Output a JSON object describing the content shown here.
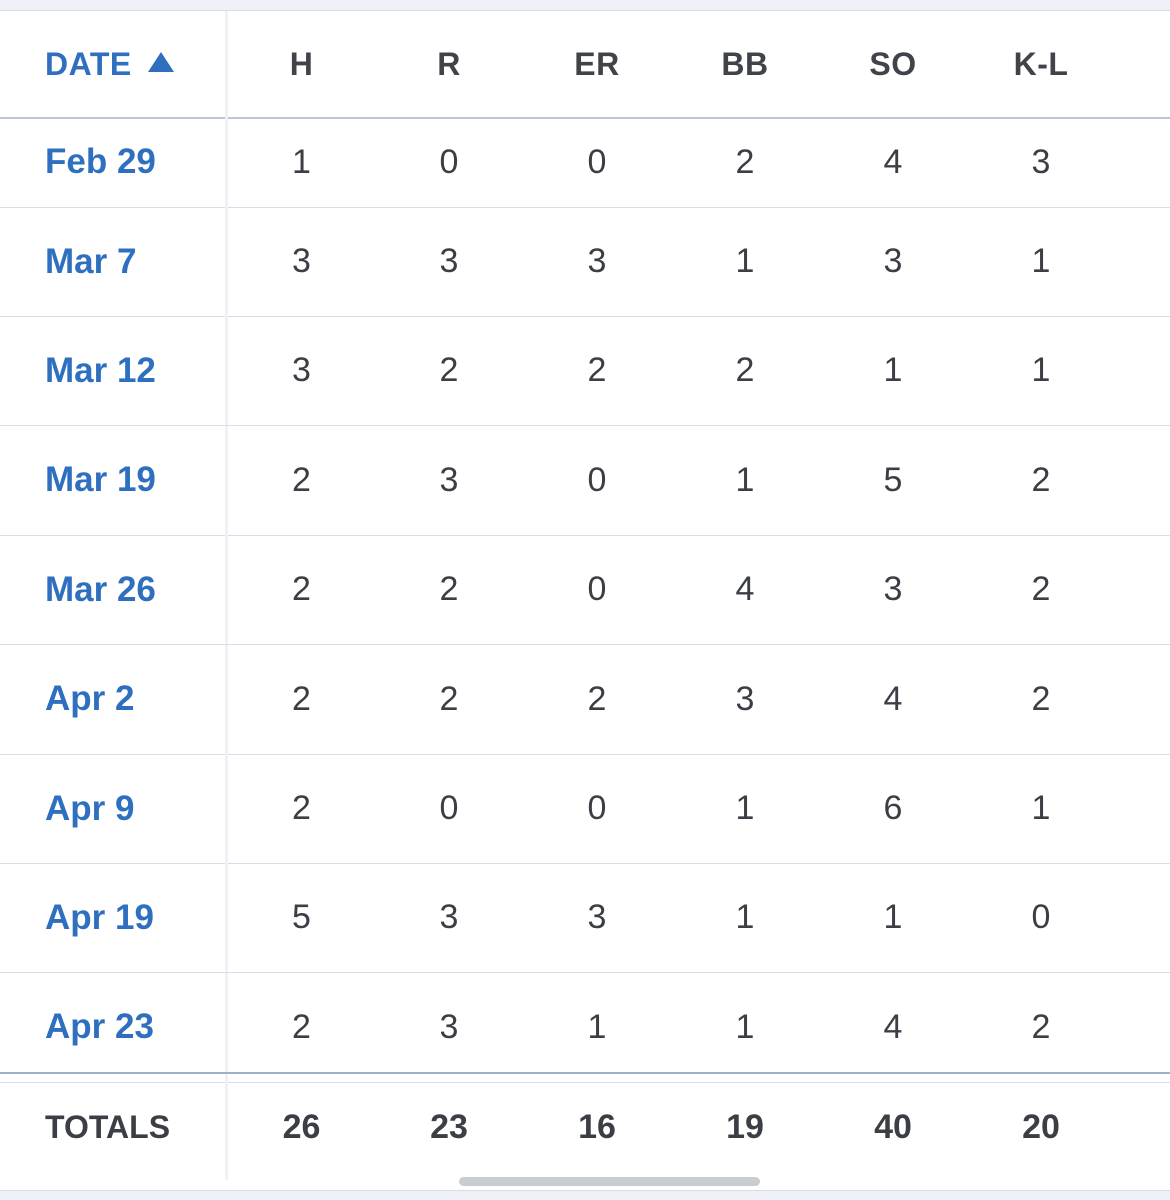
{
  "table": {
    "columns": {
      "date": "DATE",
      "h": "H",
      "r": "R",
      "er": "ER",
      "bb": "BB",
      "so": "SO",
      "kl": "K-L",
      "next": "H"
    },
    "sort_icon": "sort-ascending-triangle-icon",
    "rows": [
      {
        "date": "Feb 29",
        "h": "1",
        "r": "0",
        "er": "0",
        "bb": "2",
        "so": "4",
        "kl": "3"
      },
      {
        "date": "Mar 7",
        "h": "3",
        "r": "3",
        "er": "3",
        "bb": "1",
        "so": "3",
        "kl": "1"
      },
      {
        "date": "Mar 12",
        "h": "3",
        "r": "2",
        "er": "2",
        "bb": "2",
        "so": "1",
        "kl": "1"
      },
      {
        "date": "Mar 19",
        "h": "2",
        "r": "3",
        "er": "0",
        "bb": "1",
        "so": "5",
        "kl": "2"
      },
      {
        "date": "Mar 26",
        "h": "2",
        "r": "2",
        "er": "0",
        "bb": "4",
        "so": "3",
        "kl": "2"
      },
      {
        "date": "Apr 2",
        "h": "2",
        "r": "2",
        "er": "2",
        "bb": "3",
        "so": "4",
        "kl": "2"
      },
      {
        "date": "Apr 9",
        "h": "2",
        "r": "0",
        "er": "0",
        "bb": "1",
        "so": "6",
        "kl": "1"
      },
      {
        "date": "Apr 19",
        "h": "5",
        "r": "3",
        "er": "3",
        "bb": "1",
        "so": "1",
        "kl": "0"
      },
      {
        "date": "Apr 23",
        "h": "2",
        "r": "3",
        "er": "1",
        "bb": "1",
        "so": "4",
        "kl": "2"
      }
    ],
    "totals": {
      "label": "TOTALS",
      "h": "26",
      "r": "23",
      "er": "16",
      "bb": "19",
      "so": "40",
      "kl": "20"
    }
  },
  "colors": {
    "link": "#2f6fc0",
    "text": "#3b3f45"
  }
}
